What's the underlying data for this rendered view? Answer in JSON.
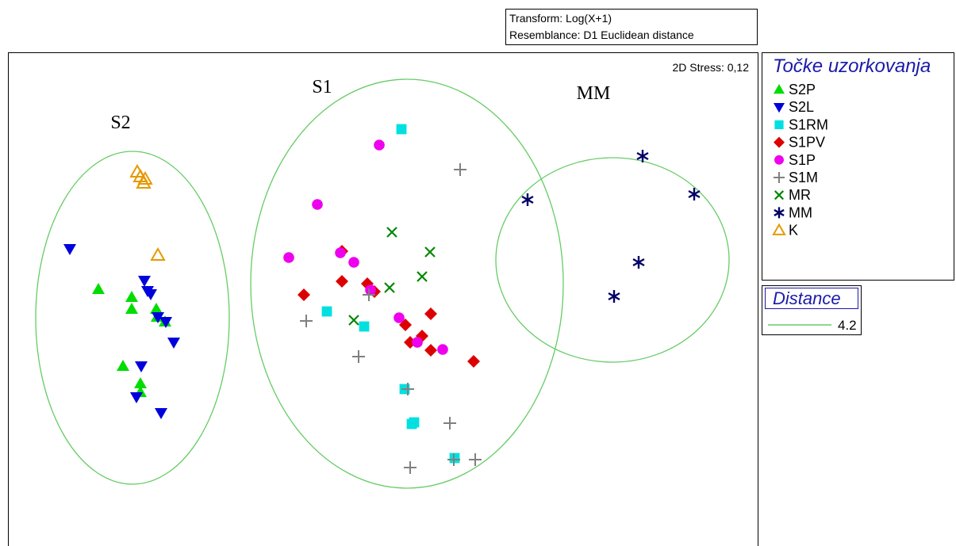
{
  "info_box": {
    "transform": "Transform: Log(X+1)",
    "resemblance": "Resemblance: D1 Euclidean distance"
  },
  "stress_label": "2D Stress: 0,12",
  "group_labels": {
    "s2": "S2",
    "s1": "S1",
    "mm": "MM"
  },
  "legend": {
    "title": "Točke uzorkovanja",
    "entries": [
      {
        "label": "S2P",
        "symbol": "triangle-up",
        "color": "#00dd00"
      },
      {
        "label": "S2L",
        "symbol": "triangle-down",
        "color": "#0000dd"
      },
      {
        "label": "S1RM",
        "symbol": "square",
        "color": "#00e0e0"
      },
      {
        "label": "S1PV",
        "symbol": "diamond",
        "color": "#dd0000"
      },
      {
        "label": "S1P",
        "symbol": "circle",
        "color": "#ee00ee"
      },
      {
        "label": "S1M",
        "symbol": "plus",
        "color": "#808080"
      },
      {
        "label": "MR",
        "symbol": "cross",
        "color": "#008800"
      },
      {
        "label": "MM",
        "symbol": "asterisk",
        "color": "#000066"
      },
      {
        "label": "K",
        "symbol": "triangle-open",
        "color": "#e69900"
      }
    ]
  },
  "distance_legend": {
    "title": "Distance",
    "value": "4.2",
    "color": "#66cc66"
  },
  "chart_data": {
    "type": "scatter",
    "title": "",
    "xlabel": "",
    "ylabel": "",
    "xlim": [
      0,
      944
    ],
    "ylim": [
      0,
      627
    ],
    "grid": false,
    "legend_position": "right",
    "series": [
      {
        "name": "S2P",
        "points": [
          [
            114,
            323
          ],
          [
            156,
            313
          ],
          [
            156,
            298
          ],
          [
            187,
            298
          ],
          [
            188,
            288
          ],
          [
            198,
            282
          ],
          [
            145,
            226
          ],
          [
            167,
            204
          ],
          [
            167,
            193
          ]
        ]
      },
      {
        "name": "S2L",
        "points": [
          [
            78,
            374
          ],
          [
            172,
            334
          ],
          [
            176,
            321
          ],
          [
            180,
            317
          ],
          [
            189,
            288
          ],
          [
            199,
            282
          ],
          [
            209,
            256
          ],
          [
            168,
            226
          ],
          [
            162,
            187
          ],
          [
            193,
            167
          ]
        ]
      },
      {
        "name": "S1RM",
        "points": [
          [
            496,
            525
          ],
          [
            402,
            295
          ],
          [
            449,
            276
          ],
          [
            500,
            197
          ],
          [
            512,
            155
          ],
          [
            509,
            153
          ],
          [
            563,
            110
          ]
        ]
      },
      {
        "name": "S1PV",
        "points": [
          [
            421,
            371
          ],
          [
            373,
            316
          ],
          [
            421,
            333
          ],
          [
            453,
            330
          ],
          [
            462,
            320
          ],
          [
            533,
            292
          ],
          [
            501,
            278
          ],
          [
            507,
            256
          ],
          [
            522,
            264
          ],
          [
            533,
            246
          ],
          [
            587,
            232
          ]
        ]
      },
      {
        "name": "S1P",
        "points": [
          [
            468,
            505
          ],
          [
            390,
            430
          ],
          [
            354,
            363
          ],
          [
            419,
            369
          ],
          [
            436,
            357
          ],
          [
            457,
            322
          ],
          [
            493,
            287
          ],
          [
            516,
            256
          ],
          [
            548,
            247
          ]
        ]
      },
      {
        "name": "S1M",
        "points": [
          [
            570,
            474
          ],
          [
            455,
            316
          ],
          [
            376,
            283
          ],
          [
            442,
            238
          ],
          [
            504,
            197
          ],
          [
            557,
            154
          ],
          [
            562,
            108
          ],
          [
            589,
            108
          ],
          [
            507,
            98
          ]
        ]
      },
      {
        "name": "MR",
        "points": [
          [
            484,
            395
          ],
          [
            532,
            370
          ],
          [
            522,
            339
          ],
          [
            481,
            325
          ],
          [
            436,
            284
          ]
        ]
      },
      {
        "name": "MM",
        "points": [
          [
            800,
            491
          ],
          [
            655,
            436
          ],
          [
            865,
            443
          ],
          [
            795,
            357
          ],
          [
            764,
            314
          ]
        ]
      },
      {
        "name": "K",
        "points": [
          [
            163,
            471
          ],
          [
            167,
            465
          ],
          [
            173,
            462
          ],
          [
            171,
            457
          ],
          [
            189,
            366
          ]
        ]
      }
    ],
    "clusters": [
      {
        "name": "S2",
        "cx": 157,
        "cy": 287,
        "rx": 122,
        "ry": 210
      },
      {
        "name": "S1",
        "cx": 503,
        "cy": 330,
        "rx": 197,
        "ry": 258
      },
      {
        "name": "MM",
        "cx": 762,
        "cy": 360,
        "rx": 147,
        "ry": 129
      }
    ]
  }
}
